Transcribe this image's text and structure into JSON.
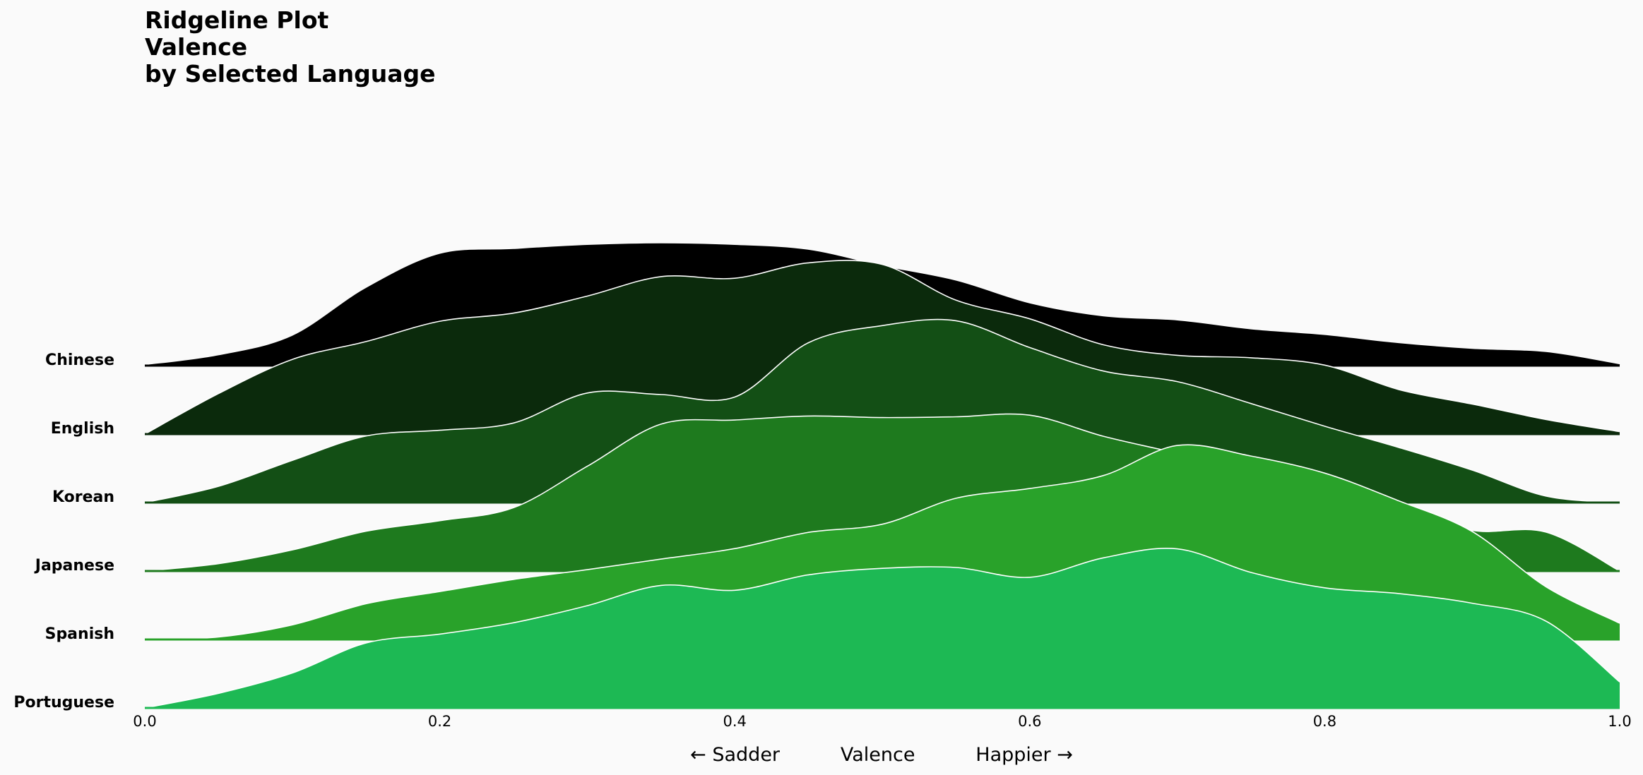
{
  "chart_data": {
    "type": "ridgeline",
    "title_lines": [
      "Ridgeline Plot",
      "Valence",
      "by Selected Language"
    ],
    "xlabel": "← Sadder          Valence          Happier →",
    "xlim": [
      0.0,
      1.0
    ],
    "xticks": [
      "0.0",
      "0.2",
      "0.4",
      "0.6",
      "0.8",
      "1.0"
    ],
    "grid": false,
    "x": [
      0.0,
      0.05,
      0.1,
      0.15,
      0.2,
      0.25,
      0.3,
      0.35,
      0.4,
      0.45,
      0.5,
      0.55,
      0.6,
      0.65,
      0.7,
      0.75,
      0.8,
      0.85,
      0.9,
      0.95,
      1.0
    ],
    "series": [
      {
        "name": "Chinese",
        "color": "#000000",
        "values": [
          0.0,
          0.12,
          0.36,
          0.95,
          1.37,
          1.43,
          1.48,
          1.5,
          1.48,
          1.42,
          1.22,
          1.04,
          0.76,
          0.6,
          0.55,
          0.44,
          0.37,
          0.27,
          0.2,
          0.16,
          0.01
        ]
      },
      {
        "name": "English",
        "color": "#0b2a0c",
        "values": [
          0.0,
          0.5,
          0.92,
          1.14,
          1.39,
          1.49,
          1.7,
          1.94,
          1.92,
          2.11,
          2.09,
          1.65,
          1.42,
          1.1,
          0.97,
          0.94,
          0.85,
          0.55,
          0.37,
          0.18,
          0.03
        ]
      },
      {
        "name": "Korean",
        "color": "#134f15",
        "values": [
          0.0,
          0.2,
          0.52,
          0.82,
          0.89,
          0.98,
          1.35,
          1.33,
          1.3,
          1.97,
          2.18,
          2.24,
          1.91,
          1.62,
          1.49,
          1.22,
          0.94,
          0.68,
          0.4,
          0.08,
          0.0
        ]
      },
      {
        "name": "Japanese",
        "color": "#1e7a1e",
        "values": [
          0.0,
          0.09,
          0.26,
          0.49,
          0.62,
          0.78,
          1.29,
          1.81,
          1.86,
          1.91,
          1.89,
          1.9,
          1.92,
          1.66,
          1.45,
          1.22,
          1.04,
          0.78,
          0.5,
          0.48,
          0.0
        ]
      },
      {
        "name": "Spanish",
        "color": "#29a22a",
        "values": [
          0.0,
          0.03,
          0.18,
          0.44,
          0.59,
          0.74,
          0.86,
          0.99,
          1.12,
          1.32,
          1.42,
          1.74,
          1.86,
          2.02,
          2.39,
          2.26,
          2.05,
          1.71,
          1.33,
          0.65,
          0.2
        ]
      },
      {
        "name": "Portuguese",
        "color": "#1db954",
        "values": [
          0.0,
          0.18,
          0.43,
          0.8,
          0.91,
          1.05,
          1.26,
          1.51,
          1.45,
          1.64,
          1.72,
          1.73,
          1.61,
          1.85,
          1.96,
          1.67,
          1.48,
          1.41,
          1.29,
          1.07,
          0.32
        ]
      }
    ]
  }
}
